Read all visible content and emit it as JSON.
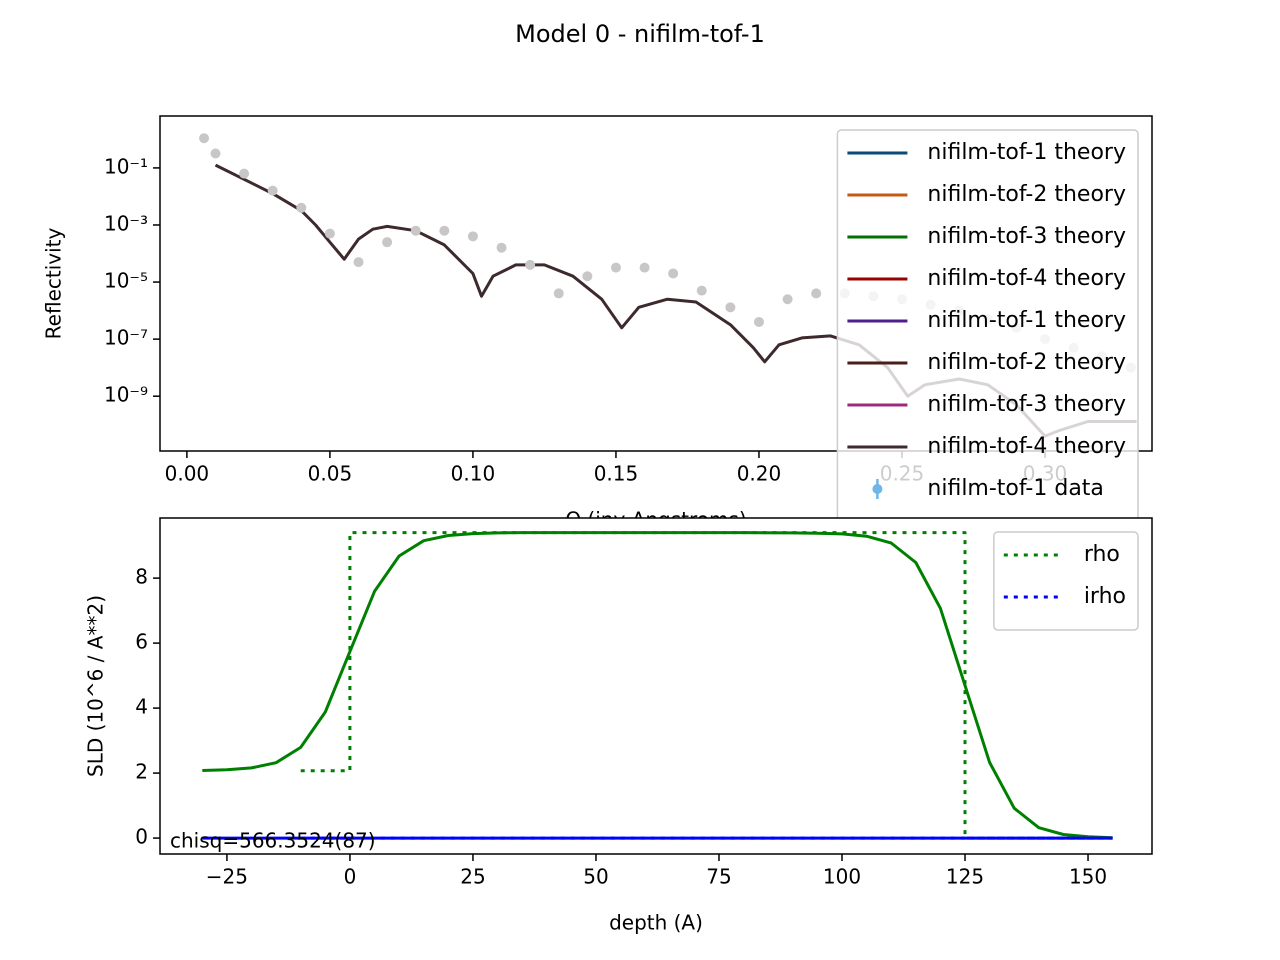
{
  "chart_data": [
    {
      "type": "line",
      "title": "Model 0 - nifilm-tof-1",
      "xlabel": "Q (inv Angstroms)",
      "ylabel": "Reflectivity",
      "log_y": true,
      "xlim": [
        -0.0094,
        0.3374
      ],
      "ylim": [
        1.2e-11,
        6.6
      ],
      "xticks": [
        {
          "value": 0,
          "label": "0.00"
        },
        {
          "value": 0.05,
          "label": "0.05"
        },
        {
          "value": 0.1,
          "label": "0.10"
        },
        {
          "value": 0.15,
          "label": "0.15"
        },
        {
          "value": 0.2,
          "label": "0.20"
        },
        {
          "value": 0.25,
          "label": "0.25"
        },
        {
          "value": 0.3,
          "label": "0.30"
        }
      ],
      "yticks": [
        {
          "value": 0.1,
          "label": "10⁻¹"
        },
        {
          "value": 0.001,
          "label": "10⁻³"
        },
        {
          "value": 1e-05,
          "label": "10⁻⁵"
        },
        {
          "value": 1e-07,
          "label": "10⁻⁷"
        },
        {
          "value": 1e-09,
          "label": "10⁻⁹"
        }
      ],
      "legend_loc": "upper right",
      "series": [
        {
          "name": "nifilm-tof-1 theory",
          "color": "#0b4a78"
        },
        {
          "name": "nifilm-tof-2 theory",
          "color": "#c45a14"
        },
        {
          "name": "nifilm-tof-3 theory",
          "color": "#007000"
        },
        {
          "name": "nifilm-tof-4 theory",
          "color": "#990000"
        },
        {
          "name": "nifilm-tof-1 theory",
          "color": "#4b1f8c"
        },
        {
          "name": "nifilm-tof-2 theory",
          "color": "#4a1e1a"
        },
        {
          "name": "nifilm-tof-3 theory",
          "color": "#a0287c"
        },
        {
          "name": "nifilm-tof-4 theory",
          "color": "#3e2a2c",
          "x": [
            0.01,
            0.02,
            0.03,
            0.04,
            0.045,
            0.05,
            0.055,
            0.06,
            0.065,
            0.07,
            0.08,
            0.09,
            0.1,
            0.103,
            0.107,
            0.115,
            0.125,
            0.135,
            0.145,
            0.152,
            0.158,
            0.168,
            0.178,
            0.19,
            0.198,
            0.202,
            0.207,
            0.215,
            0.225,
            0.235,
            0.245,
            0.252,
            0.258,
            0.27,
            0.28,
            0.29,
            0.3,
            0.305,
            0.315,
            0.325,
            0.332
          ],
          "values": [
            0.126,
            0.04,
            0.0126,
            0.0032,
            0.001,
            0.00025,
            6.3e-05,
            0.00032,
            0.00071,
            0.00089,
            0.00063,
            0.0002,
            2e-05,
            3.2e-06,
            1.6e-05,
            4e-05,
            4e-05,
            1.6e-05,
            2.5e-06,
            2.5e-07,
            1.3e-06,
            2.5e-06,
            2e-06,
            3.2e-07,
            5e-08,
            1.6e-08,
            6.3e-08,
            1.1e-07,
            1.3e-07,
            6.3e-08,
            1e-08,
            1e-09,
            2.5e-09,
            4e-09,
            2.5e-09,
            5e-10,
            4e-11,
            6.3e-11,
            1.3e-10,
            1.3e-10,
            1.3e-10
          ]
        },
        {
          "name": "nifilm-tof-1 data",
          "color": "#c8c6c6",
          "legend_color": "#6eb5e8",
          "marker": "o",
          "x": [
            0.006,
            0.01,
            0.02,
            0.03,
            0.04,
            0.05,
            0.06,
            0.07,
            0.08,
            0.09,
            0.1,
            0.11,
            0.12,
            0.13,
            0.14,
            0.15,
            0.16,
            0.17,
            0.18,
            0.19,
            0.2,
            0.21,
            0.22,
            0.23,
            0.24,
            0.25,
            0.26,
            0.27,
            0.28,
            0.29,
            0.3,
            0.31,
            0.32,
            0.33
          ],
          "values": [
            1.1,
            0.32,
            0.063,
            0.016,
            0.004,
            0.0005,
            5e-05,
            0.00025,
            0.00063,
            0.00063,
            0.0004,
            0.00016,
            4e-05,
            4e-06,
            1.6e-05,
            3.2e-05,
            3.2e-05,
            2e-05,
            5e-06,
            1.3e-06,
            4e-07,
            2.5e-06,
            4e-06,
            4e-06,
            3.2e-06,
            2.5e-06,
            1.6e-06,
            1e-06,
            5e-07,
            2.5e-07,
            1e-07,
            5e-08,
            2.5e-08,
            1e-08
          ]
        }
      ]
    },
    {
      "type": "line",
      "xlabel": "depth (A)",
      "ylabel": "SLD (10^6 / A**2)",
      "annotation": "chisq=566.3524(87)",
      "xlim": [
        -38.6,
        163
      ],
      "ylim": [
        -0.49,
        9.85
      ],
      "xticks": [
        {
          "value": -25,
          "label": "−25"
        },
        0,
        25,
        50,
        75,
        100,
        125,
        150
      ],
      "yticks": [
        0,
        2,
        4,
        6,
        8
      ],
      "legend_loc": "upper right",
      "series": [
        {
          "color": "#008000",
          "dash": "solid",
          "x": [
            -30,
            -25,
            -20,
            -15,
            -10,
            -5,
            0,
            5,
            10,
            15,
            20,
            25,
            30,
            35,
            40,
            50,
            60,
            70,
            80,
            90,
            95,
            100,
            105,
            110,
            115,
            120,
            125,
            130,
            135,
            140,
            145,
            150,
            155
          ],
          "values": [
            2.08,
            2.1,
            2.16,
            2.32,
            2.79,
            3.88,
            5.74,
            7.59,
            8.68,
            9.15,
            9.31,
            9.37,
            9.39,
            9.4,
            9.4,
            9.4,
            9.4,
            9.4,
            9.4,
            9.39,
            9.38,
            9.36,
            9.29,
            9.08,
            8.48,
            7.07,
            4.7,
            2.33,
            0.92,
            0.32,
            0.11,
            0.04,
            0.01
          ]
        },
        {
          "name": "rho",
          "color": "#008000",
          "dash": "dotted",
          "x": [
            -10,
            0,
            0,
            125,
            125,
            155
          ],
          "values": [
            2.07,
            2.07,
            9.4,
            9.4,
            0,
            0
          ]
        },
        {
          "name": "irho",
          "color": "#0000ff",
          "dash": "dotted",
          "x": [
            -10,
            155
          ],
          "values": [
            0,
            0
          ]
        },
        {
          "color": "#0000ff",
          "dash": "solid",
          "x": [
            -30,
            155
          ],
          "values": [
            0,
            0
          ]
        }
      ]
    }
  ]
}
